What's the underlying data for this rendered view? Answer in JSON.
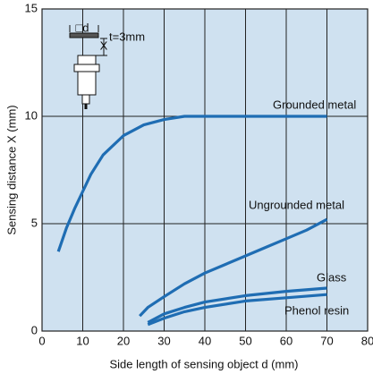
{
  "chart_data": {
    "type": "line",
    "x_label": "Side length of sensing object d (mm)",
    "y_label": "Sensing distance X (mm)",
    "annotations": [
      "t=3mm",
      "□d",
      "X"
    ],
    "xlim": [
      0,
      80
    ],
    "xticks": [
      0,
      10,
      20,
      30,
      40,
      50,
      60,
      70,
      80
    ],
    "ylim": [
      0,
      15
    ],
    "yticks": [
      0,
      5,
      10,
      15
    ],
    "grid": true,
    "series": [
      {
        "name": "Grounded metal",
        "color": "#1f6db3",
        "x": [
          4,
          6,
          8,
          10,
          12,
          15,
          20,
          25,
          30,
          35,
          40,
          50,
          60,
          70
        ],
        "values": [
          3.7,
          4.8,
          5.7,
          6.5,
          7.3,
          8.2,
          9.1,
          9.6,
          9.85,
          10,
          10,
          10,
          10,
          10
        ]
      },
      {
        "name": "Ungrounded metal",
        "color": "#1f6db3",
        "x": [
          24,
          26,
          30,
          35,
          40,
          45,
          50,
          55,
          60,
          65,
          70
        ],
        "values": [
          0.7,
          1.1,
          1.6,
          2.2,
          2.7,
          3.1,
          3.5,
          3.9,
          4.3,
          4.7,
          5.2
        ]
      },
      {
        "name": "Glass",
        "color": "#1f6db3",
        "x": [
          26,
          30,
          35,
          40,
          50,
          60,
          70
        ],
        "values": [
          0.4,
          0.8,
          1.1,
          1.35,
          1.65,
          1.85,
          2.0
        ]
      },
      {
        "name": "Phenol resin",
        "color": "#1f6db3",
        "x": [
          26,
          30,
          35,
          40,
          50,
          60,
          70
        ],
        "values": [
          0.3,
          0.6,
          0.9,
          1.1,
          1.4,
          1.55,
          1.7
        ]
      }
    ]
  }
}
